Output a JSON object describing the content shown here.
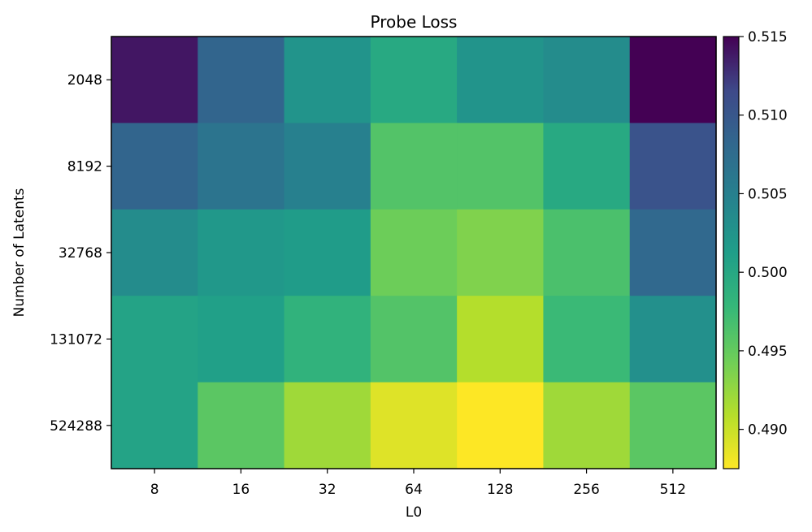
{
  "chart_data": {
    "type": "heatmap",
    "title": "Probe Loss",
    "xlabel": "L0",
    "ylabel": "Number of Latents",
    "x_categories": [
      "8",
      "16",
      "32",
      "64",
      "128",
      "256",
      "512"
    ],
    "y_categories": [
      "2048",
      "8192",
      "32768",
      "131072",
      "524288"
    ],
    "values": [
      [
        0.514,
        0.5085,
        0.5025,
        0.4998,
        0.5025,
        0.5035,
        0.515
      ],
      [
        0.5085,
        0.5065,
        0.505,
        0.496,
        0.496,
        0.4998,
        0.5105
      ],
      [
        0.5035,
        0.502,
        0.5015,
        0.4945,
        0.4935,
        0.4965,
        0.508
      ],
      [
        0.5005,
        0.501,
        0.4985,
        0.496,
        0.491,
        0.4975,
        0.503
      ],
      [
        0.5005,
        0.4955,
        0.492,
        0.489,
        0.4875,
        0.492,
        0.4955
      ]
    ],
    "colorbar": {
      "colormap": "viridis_r",
      "min": 0.4875,
      "max": 0.515,
      "ticks": [
        "0.490",
        "0.495",
        "0.500",
        "0.505",
        "0.510",
        "0.515"
      ]
    },
    "grid": false
  }
}
